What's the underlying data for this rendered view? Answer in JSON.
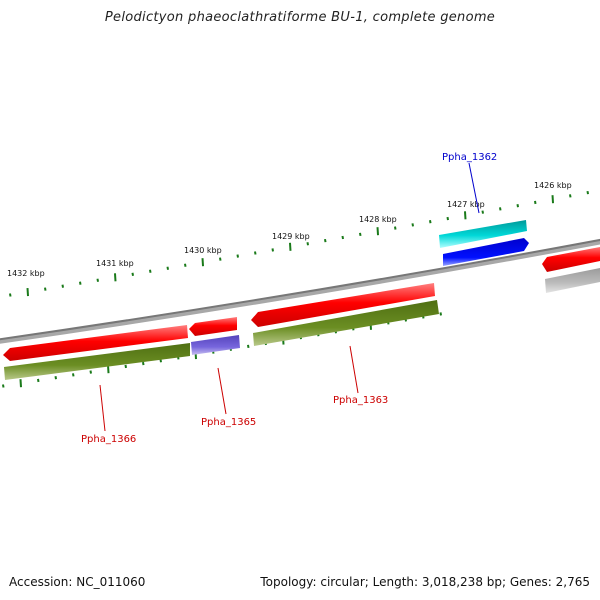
{
  "title": "Pelodictyon phaeoclathratiforme BU-1, complete genome",
  "footer": {
    "accession": "Accession: NC_011060",
    "stats": "Topology: circular; Length: 3,018,238 bp; Genes: 2,765"
  },
  "colors": {
    "backbone": "#888888",
    "tick": "#1a7a1a",
    "forward_cds": "#ff0000",
    "reverse_cds": "#ff0000",
    "forward_gene": "#00cccc",
    "reverse_gene_blue": "#0000ee",
    "rna_gene": "#6655cc",
    "gene_track": "#5e7f1e",
    "grey_feature": "#bbbbbb",
    "label_red": "#cc0000",
    "label_blue": "#0000cc"
  },
  "kbp_labels": [
    "1432 kbp",
    "1431 kbp",
    "1430 kbp",
    "1429 kbp",
    "1428 kbp",
    "1427 kbp",
    "1426 kbp"
  ],
  "gene_labels": [
    {
      "text": "Ppha_1362",
      "color": "blue"
    },
    {
      "text": "Ppha_1363",
      "color": "red"
    },
    {
      "text": "Ppha_1365",
      "color": "red"
    },
    {
      "text": "Ppha_1366",
      "color": "red"
    }
  ]
}
